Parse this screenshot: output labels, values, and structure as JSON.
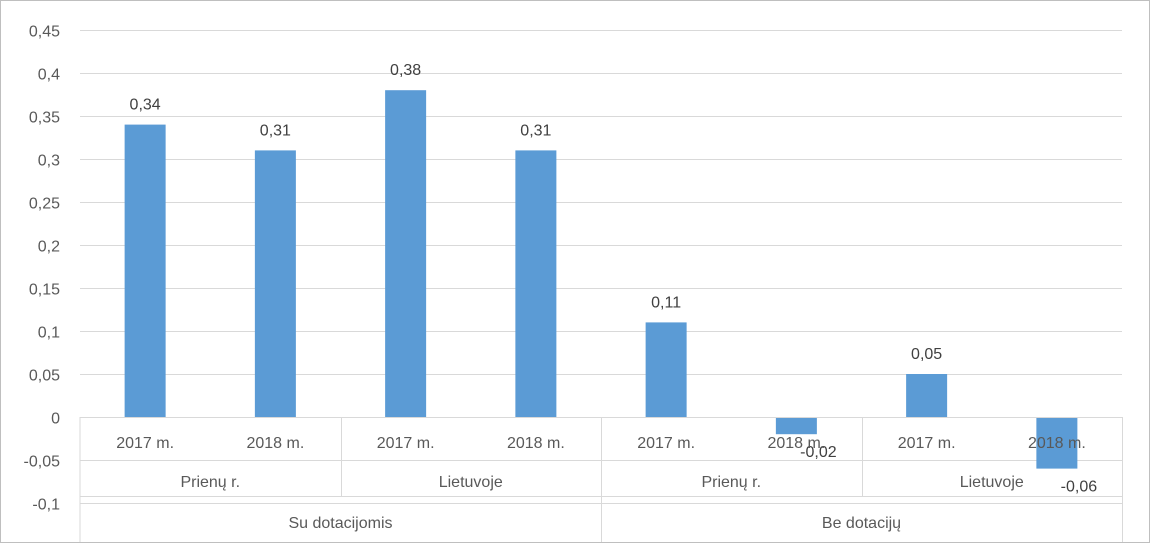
{
  "chart_data": {
    "type": "bar",
    "title": "",
    "xlabel": "",
    "ylabel": "",
    "ylim": [
      -0.1,
      0.45
    ],
    "yticks": [
      "0,45",
      "0,4",
      "0,35",
      "0,3",
      "0,25",
      "0,2",
      "0,15",
      "0,1",
      "0,05",
      "0",
      "-0,05",
      "-0,1"
    ],
    "grid": true,
    "legend": "none",
    "bar_color": "#5b9bd5",
    "groups": [
      {
        "label": "Su dotacijomis",
        "subgroups": [
          {
            "label": "Prienų r.",
            "categories": [
              "2017 m.",
              "2018 m."
            ],
            "values": [
              0.34,
              0.31
            ],
            "labels": [
              "0,34",
              "0,31"
            ]
          },
          {
            "label": "Lietuvoje",
            "categories": [
              "2017 m.",
              "2018 m."
            ],
            "values": [
              0.38,
              0.31
            ],
            "labels": [
              "0,38",
              "0,31"
            ]
          }
        ]
      },
      {
        "label": "Be dotacijų",
        "subgroups": [
          {
            "label": "Prienų r.",
            "categories": [
              "2017 m.",
              "2018 m."
            ],
            "values": [
              0.11,
              -0.02
            ],
            "labels": [
              "0,11",
              "-0,02"
            ]
          },
          {
            "label": "Lietuvoje",
            "categories": [
              "2017 m.",
              "2018 m."
            ],
            "values": [
              0.05,
              -0.06
            ],
            "labels": [
              "0,05",
              "-0,06"
            ]
          }
        ]
      }
    ]
  }
}
